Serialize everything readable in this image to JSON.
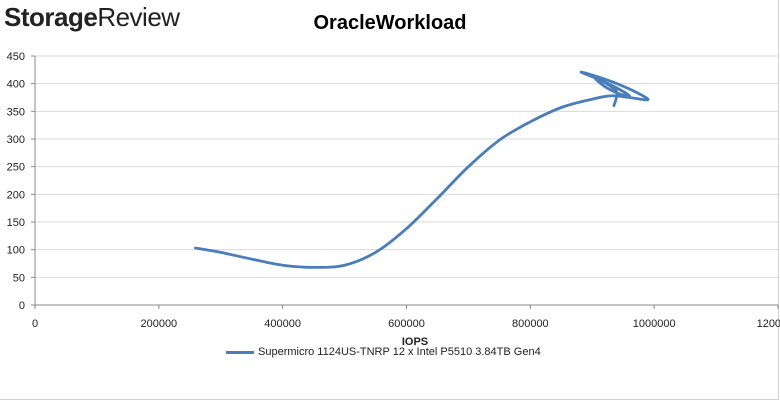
{
  "brand": {
    "part1": "Storage",
    "part2": "Review"
  },
  "chart_data": {
    "type": "line",
    "title": "OracleWorkload",
    "xlabel": "IOPS",
    "ylabel": "",
    "xlim": [
      0,
      1200000
    ],
    "ylim": [
      0,
      450
    ],
    "xticks": [
      "0",
      "200000",
      "400000",
      "600000",
      "800000",
      "1000000",
      "1200000"
    ],
    "yticks": [
      "0",
      "50",
      "100",
      "150",
      "200",
      "250",
      "300",
      "350",
      "400",
      "450"
    ],
    "grid": "horizontal",
    "legend_position": "bottom",
    "series": [
      {
        "name": "Supermicro 1124US-TNRP 12 x Intel P5510 3.84TB Gen4",
        "color": "#4a7ebb",
        "x": [
          259000,
          300000,
          350000,
          400000,
          450000,
          500000,
          550000,
          600000,
          650000,
          700000,
          750000,
          800000,
          850000,
          900000,
          930000,
          960000,
          990000,
          970000,
          940000,
          910000,
          882000,
          905000,
          935000,
          960000,
          945000,
          920000,
          905000,
          930000,
          940000,
          935000
        ],
        "y": [
          103,
          95,
          83,
          72,
          68,
          72,
          95,
          138,
          193,
          250,
          298,
          331,
          357,
          372,
          378,
          375,
          371,
          385,
          400,
          412,
          421,
          410,
          395,
          378,
          381,
          395,
          410,
          395,
          383,
          360
        ]
      }
    ]
  }
}
